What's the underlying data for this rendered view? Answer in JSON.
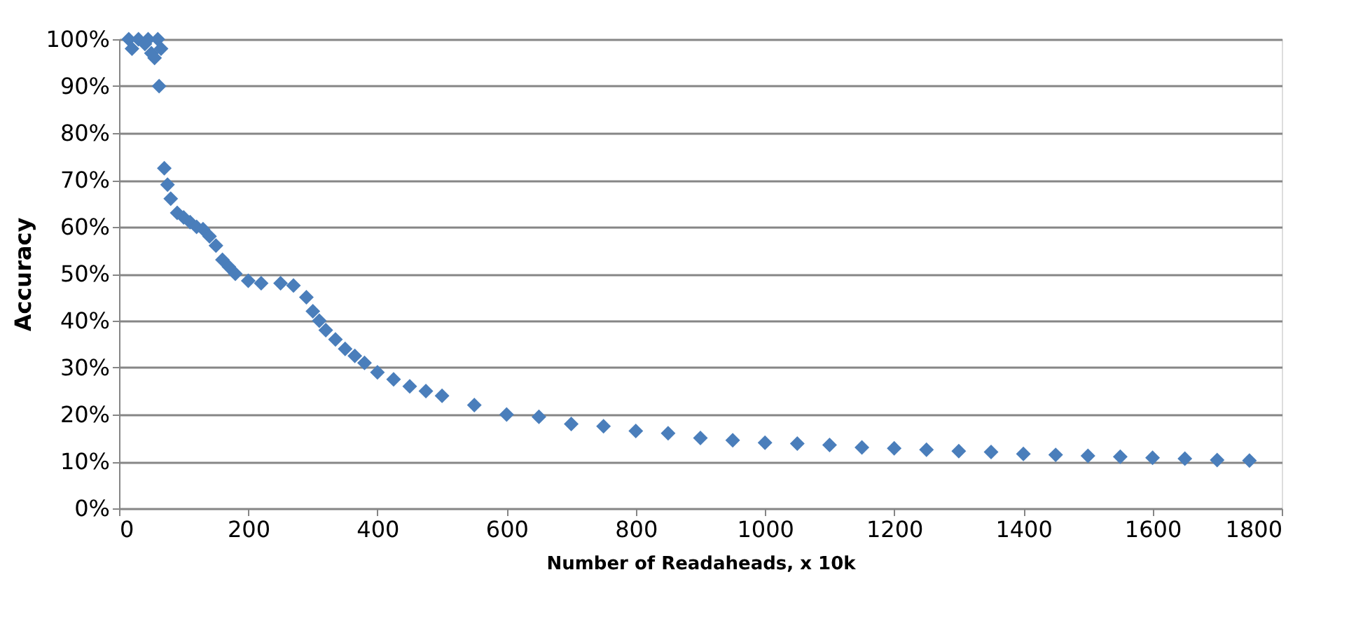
{
  "chart_data": {
    "type": "scatter",
    "xlabel": "Number of Readaheads, x 10k",
    "ylabel": "Accuracy",
    "marker": "diamond",
    "grid": "y",
    "legend": false,
    "xlim": [
      0,
      1800
    ],
    "xticks": [
      0,
      200,
      400,
      600,
      800,
      1000,
      1200,
      1400,
      1600,
      1800
    ],
    "ylim": [
      0,
      100
    ],
    "yticks": [
      {
        "value": 0,
        "label": "0%"
      },
      {
        "value": 10,
        "label": "10%"
      },
      {
        "value": 20,
        "label": "20%"
      },
      {
        "value": 30,
        "label": "30%"
      },
      {
        "value": 40,
        "label": "40%"
      },
      {
        "value": 50,
        "label": "50%"
      },
      {
        "value": 60,
        "label": "60%"
      },
      {
        "value": 70,
        "label": "70%"
      },
      {
        "value": 80,
        "label": "80%"
      },
      {
        "value": 90,
        "label": "90%"
      },
      {
        "value": 100,
        "label": "100%"
      }
    ],
    "series": [
      {
        "color": "#4a7ebb",
        "x": [
          15,
          20,
          30,
          40,
          45,
          50,
          55,
          60,
          65,
          62,
          70,
          75,
          80,
          90,
          100,
          110,
          120,
          130,
          140,
          150,
          160,
          170,
          180,
          200,
          220,
          250,
          270,
          290,
          300,
          310,
          320,
          335,
          350,
          365,
          380,
          400,
          425,
          450,
          475,
          500,
          550,
          600,
          650,
          700,
          750,
          800,
          850,
          900,
          950,
          1000,
          1050,
          1100,
          1150,
          1200,
          1250,
          1300,
          1350,
          1400,
          1450,
          1500,
          1550,
          1600,
          1650,
          1700,
          1750
        ],
        "values": [
          100,
          98,
          100,
          99,
          100,
          97,
          96,
          100,
          98,
          90,
          72.5,
          69,
          66,
          63,
          62,
          61,
          60,
          59.5,
          58,
          56,
          53,
          51.5,
          50,
          48.5,
          48,
          48,
          47.5,
          45,
          42,
          40,
          38,
          36,
          34,
          32.5,
          31,
          29,
          27.5,
          26,
          25,
          24,
          22,
          20,
          19.5,
          18,
          17.5,
          16.5,
          16,
          15,
          14.5,
          14,
          13.8,
          13.5,
          13,
          12.8,
          12.5,
          12.2,
          12,
          11.6,
          11.4,
          11.2,
          11,
          10.8,
          10.6,
          10.3,
          10.2
        ]
      }
    ]
  }
}
